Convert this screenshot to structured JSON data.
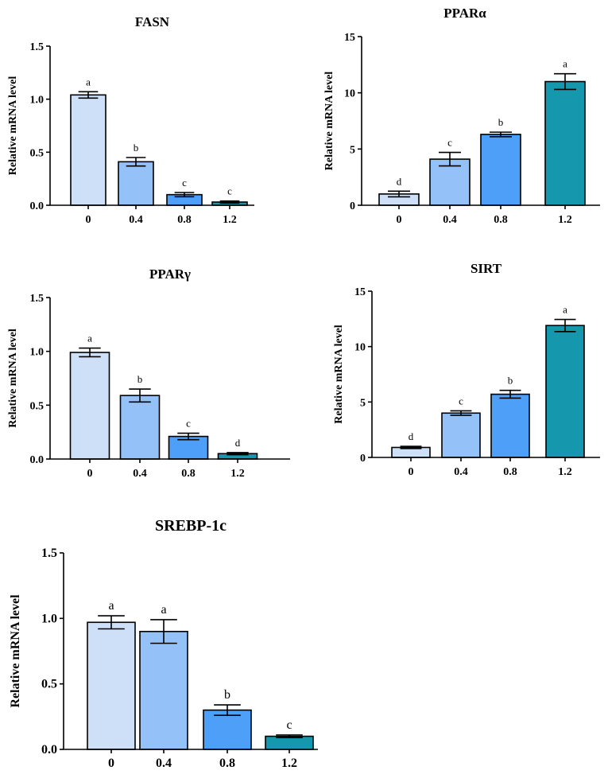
{
  "chart_data": [
    {
      "type": "bar",
      "title": "FASN",
      "xlabel": "",
      "ylabel": "Relative mRNA level",
      "categories": [
        "0",
        "0.4",
        "0.8",
        "1.2"
      ],
      "values": [
        1.04,
        0.41,
        0.1,
        0.03
      ],
      "errors": [
        0.03,
        0.04,
        0.02,
        0.01
      ],
      "letters": [
        "a",
        "b",
        "c",
        "c"
      ],
      "ylim": [
        0,
        1.5
      ],
      "yticks": [
        "0.0",
        "0.5",
        "1.0",
        "1.5"
      ]
    },
    {
      "type": "bar",
      "title": "PPARα",
      "xlabel": "",
      "ylabel": "Relative mRNA level",
      "categories": [
        "0",
        "0.4",
        "0.8",
        "1.2"
      ],
      "values": [
        1.0,
        4.1,
        6.3,
        11.0
      ],
      "errors": [
        0.25,
        0.6,
        0.2,
        0.7
      ],
      "letters": [
        "d",
        "c",
        "b",
        "a"
      ],
      "ylim": [
        0,
        15
      ],
      "yticks": [
        "0",
        "5",
        "10",
        "15"
      ]
    },
    {
      "type": "bar",
      "title": "PPARγ",
      "xlabel": "",
      "ylabel": "Relative mRNA level",
      "categories": [
        "0",
        "0.4",
        "0.8",
        "1.2"
      ],
      "values": [
        0.99,
        0.59,
        0.21,
        0.05
      ],
      "errors": [
        0.04,
        0.06,
        0.03,
        0.01
      ],
      "letters": [
        "a",
        "b",
        "c",
        "d"
      ],
      "ylim": [
        0,
        1.5
      ],
      "yticks": [
        "0.0",
        "0.5",
        "1.0",
        "1.5"
      ]
    },
    {
      "type": "bar",
      "title": "SIRT",
      "xlabel": "",
      "ylabel": "Relative mRNA level",
      "categories": [
        "0",
        "0.4",
        "0.8",
        "1.2"
      ],
      "values": [
        0.9,
        4.0,
        5.7,
        11.9
      ],
      "errors": [
        0.1,
        0.2,
        0.35,
        0.55
      ],
      "letters": [
        "d",
        "c",
        "b",
        "a"
      ],
      "ylim": [
        0,
        15
      ],
      "yticks": [
        "0",
        "5",
        "10",
        "15"
      ]
    },
    {
      "type": "bar",
      "title": "SREBP-1c",
      "xlabel": "",
      "ylabel": "Relative mRNA level",
      "categories": [
        "0",
        "0.4",
        "0.8",
        "1.2"
      ],
      "values": [
        0.97,
        0.9,
        0.3,
        0.1
      ],
      "errors": [
        0.05,
        0.09,
        0.04,
        0.01
      ],
      "letters": [
        "a",
        "a",
        "b",
        "c"
      ],
      "ylim": [
        0,
        1.5
      ],
      "yticks": [
        "0.0",
        "0.5",
        "1.0",
        "1.5"
      ]
    }
  ],
  "colors": [
    "#cde0f7",
    "#94c1f8",
    "#4e9ff8",
    "#1598ad"
  ]
}
